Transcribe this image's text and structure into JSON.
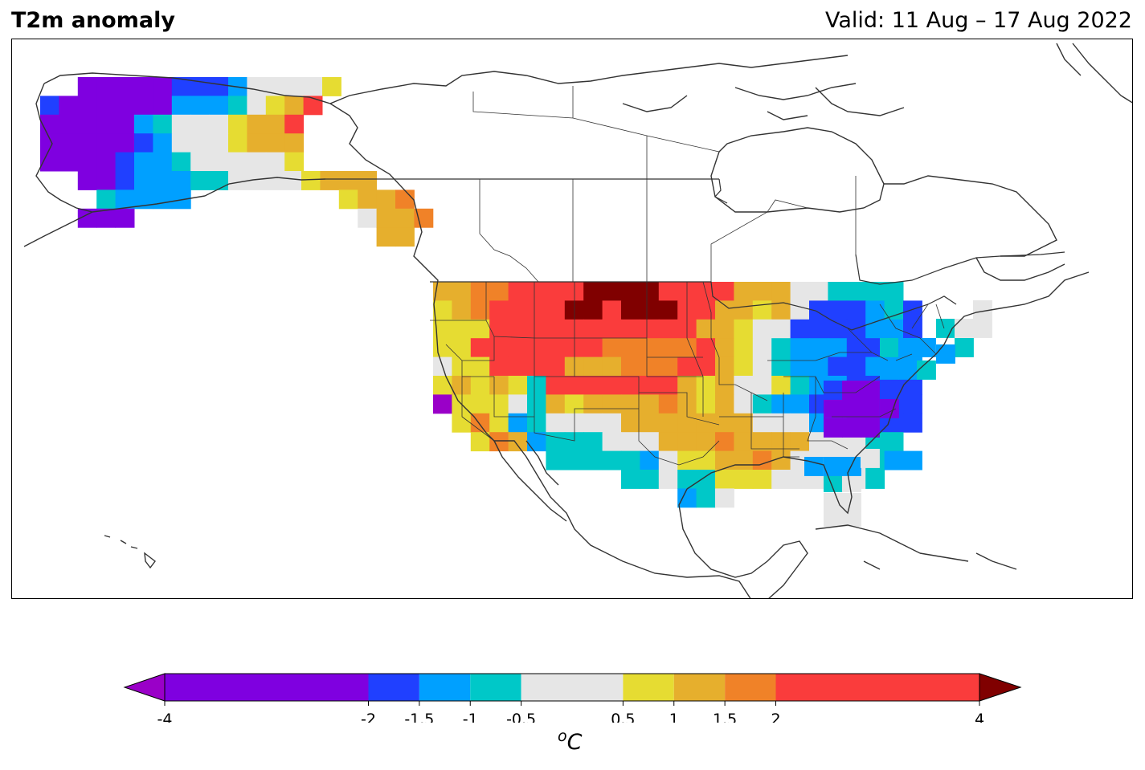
{
  "header": {
    "title": "T2m anomaly",
    "valid": "Valid: 11 Aug – 17 Aug 2022"
  },
  "colorbar": {
    "unit_base": "C",
    "unit_sup": "o",
    "bounds": [
      -4,
      -2,
      -1.5,
      -1,
      -0.5,
      0.5,
      1,
      1.5,
      2,
      4
    ],
    "tick_labels": [
      "-4",
      "-2",
      "-1.5",
      "-1",
      "-0.5",
      "0.5",
      "1",
      "1.5",
      "2",
      "4"
    ],
    "under_color": "#9a00c8",
    "over_color": "#800000",
    "colors": [
      "#7f00e0",
      "#2040ff",
      "#00a0ff",
      "#00c8c8",
      "#e6e6e6",
      "#e6dc32",
      "#e6af2d",
      "#f08228",
      "#fa3c3c"
    ]
  },
  "map": {
    "projection": "North America, lat-lon grid",
    "land_color": "#ffffff",
    "coast_color": "#333333"
  }
}
